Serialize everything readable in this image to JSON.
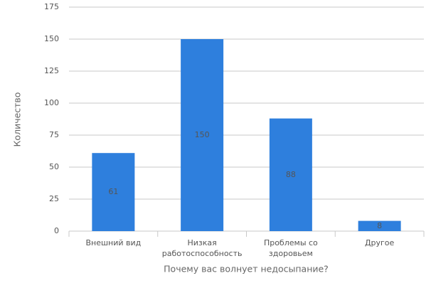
{
  "chart_data": {
    "type": "bar",
    "categories": [
      "Внешний вид",
      "Низкая работоспособность",
      "Проблемы со здоровьем",
      "Другое"
    ],
    "values": [
      61,
      150,
      88,
      8
    ],
    "color": "#2e7fdd",
    "ylim": [
      0,
      175
    ],
    "yticks": [
      0,
      25,
      50,
      75,
      100,
      125,
      150,
      175
    ],
    "grid": true,
    "x_label": "Почему вас волнует недосыпание?",
    "y_label": "Количество"
  }
}
